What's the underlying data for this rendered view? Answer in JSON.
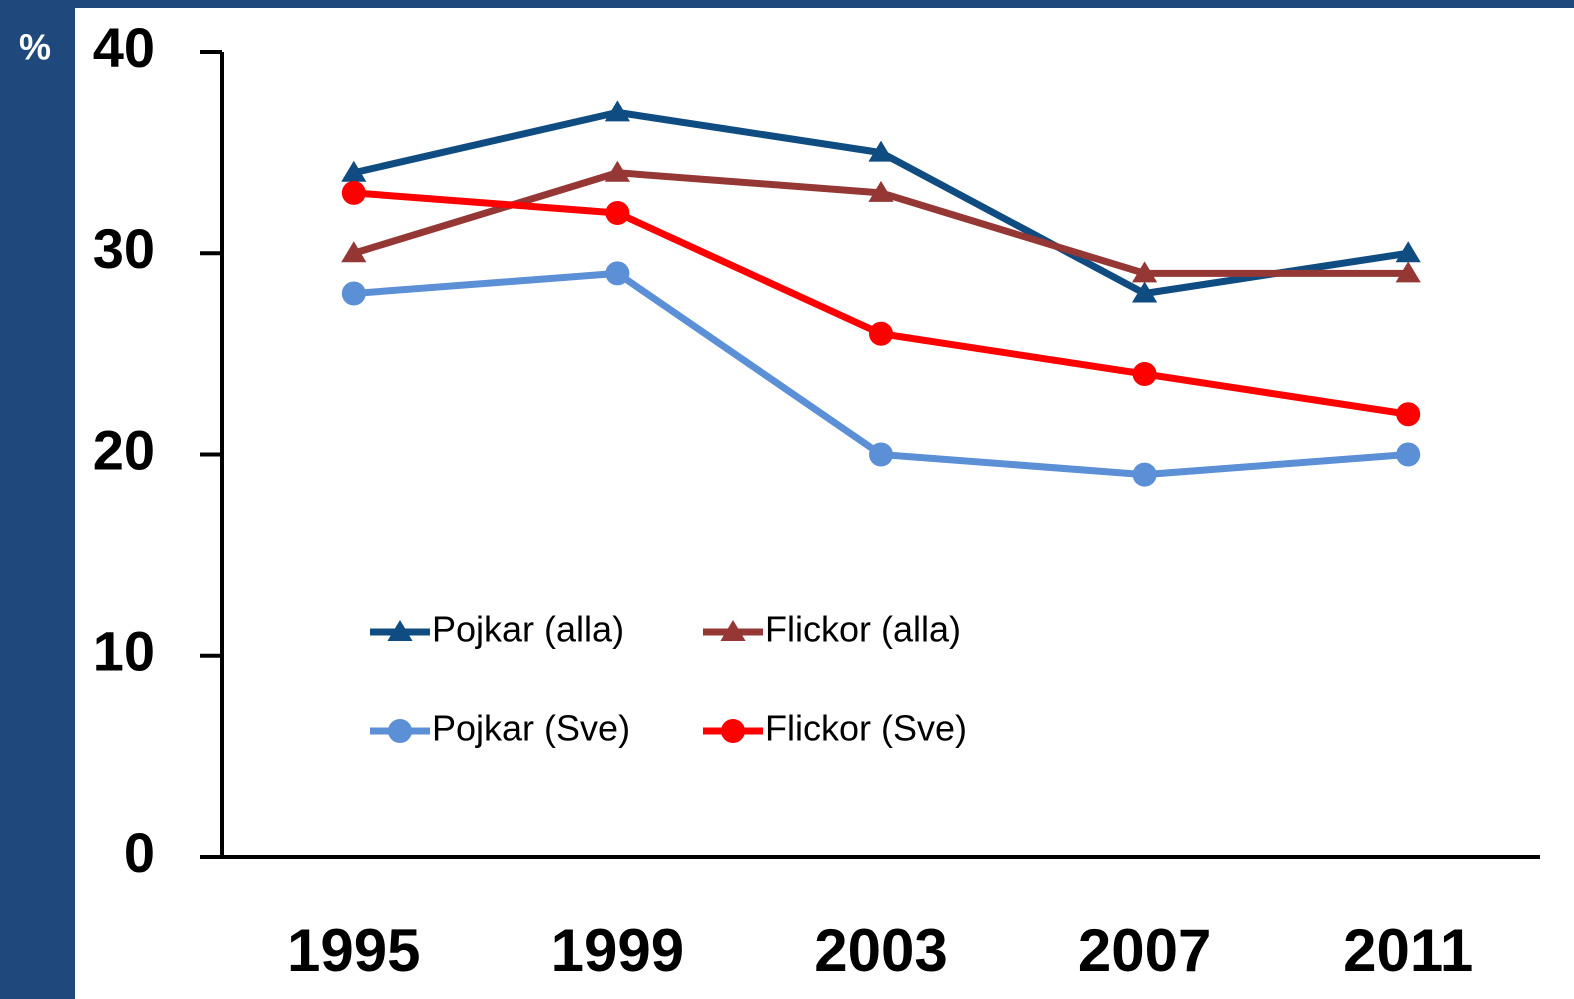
{
  "chart_data": {
    "type": "line",
    "y_label": "%",
    "categories": [
      "1995",
      "1999",
      "2003",
      "2007",
      "2011"
    ],
    "series": [
      {
        "name": "Pojkar (alla)",
        "color": "#0f4c81",
        "marker": "triangle",
        "values": [
          34,
          37,
          35,
          28,
          30
        ]
      },
      {
        "name": "Flickor (alla)",
        "color": "#953735",
        "marker": "triangle",
        "values": [
          30,
          34,
          33,
          29,
          29
        ]
      },
      {
        "name": "Pojkar (Sve)",
        "color": "#5b8fd6",
        "marker": "circle",
        "values": [
          28,
          29,
          20,
          19,
          20
        ]
      },
      {
        "name": "Flickor (Sve)",
        "color": "#ff0000",
        "marker": "circle",
        "values": [
          33,
          32,
          26,
          24,
          22
        ]
      }
    ],
    "ylim": [
      0,
      40
    ],
    "yticks": [
      0,
      10,
      20,
      30,
      40
    ]
  }
}
